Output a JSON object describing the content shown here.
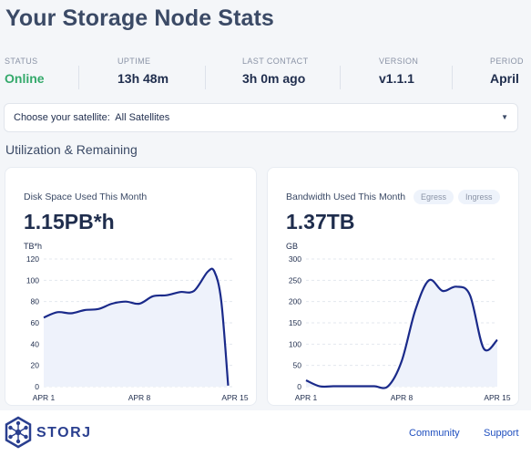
{
  "page": {
    "title": "Your Storage Node Stats"
  },
  "stats": [
    {
      "label": "STATUS",
      "value": "Online"
    },
    {
      "label": "UPTIME",
      "value": "13h 48m"
    },
    {
      "label": "LAST CONTACT",
      "value": "3h 0m ago"
    },
    {
      "label": "VERSION",
      "value": "v1.1.1"
    },
    {
      "label": "PERIOD",
      "value": "April"
    }
  ],
  "satellite_select": {
    "label": "Choose your satellite:",
    "value": "All Satellites"
  },
  "section": {
    "title": "Utilization & Remaining"
  },
  "disk_card": {
    "title": "Disk Space Used This Month",
    "value": "1.15PB*h",
    "unit": "TB*h"
  },
  "bandwidth_card": {
    "title": "Bandwidth Used This Month",
    "value": "1.37TB",
    "unit": "GB",
    "egress_label": "Egress",
    "ingress_label": "Ingress"
  },
  "footer": {
    "brand": "STORJ",
    "community": "Community",
    "support": "Support"
  },
  "colors": {
    "line": "#1a2a8a",
    "fill": "#eef2fb",
    "online": "#34a96b",
    "link": "#1f4fbf"
  },
  "chart_data": [
    {
      "type": "area",
      "title": "Disk Space Used This Month",
      "ylabel": "TB*h",
      "ylim": [
        0,
        120
      ],
      "yticks": [
        0,
        20,
        40,
        60,
        80,
        100,
        120
      ],
      "xlim": [
        1,
        15
      ],
      "xticks": [
        {
          "x": 1,
          "label": "APR 1"
        },
        {
          "x": 8,
          "label": "APR 8"
        },
        {
          "x": 15,
          "label": "APR 15"
        }
      ],
      "x": [
        1,
        2,
        3,
        4,
        5,
        6,
        7,
        8,
        9,
        10,
        11,
        12,
        13,
        13.5,
        14,
        14.5
      ],
      "values": [
        65,
        70,
        69,
        72,
        73,
        78,
        80,
        78,
        85,
        86,
        89,
        90,
        108,
        108,
        80,
        1
      ]
    },
    {
      "type": "area",
      "title": "Bandwidth Used This Month",
      "ylabel": "GB",
      "ylim": [
        0,
        300
      ],
      "yticks": [
        0,
        50,
        100,
        150,
        200,
        250,
        300
      ],
      "xlim": [
        1,
        15
      ],
      "xticks": [
        {
          "x": 1,
          "label": "APR 1"
        },
        {
          "x": 8,
          "label": "APR 8"
        },
        {
          "x": 15,
          "label": "APR 15"
        }
      ],
      "x": [
        1,
        2,
        3,
        4,
        5,
        6,
        7,
        8,
        9,
        10,
        11,
        12,
        13,
        14,
        15
      ],
      "values": [
        15,
        1,
        1,
        1,
        1,
        1,
        1,
        60,
        180,
        250,
        225,
        235,
        215,
        90,
        110
      ]
    }
  ]
}
